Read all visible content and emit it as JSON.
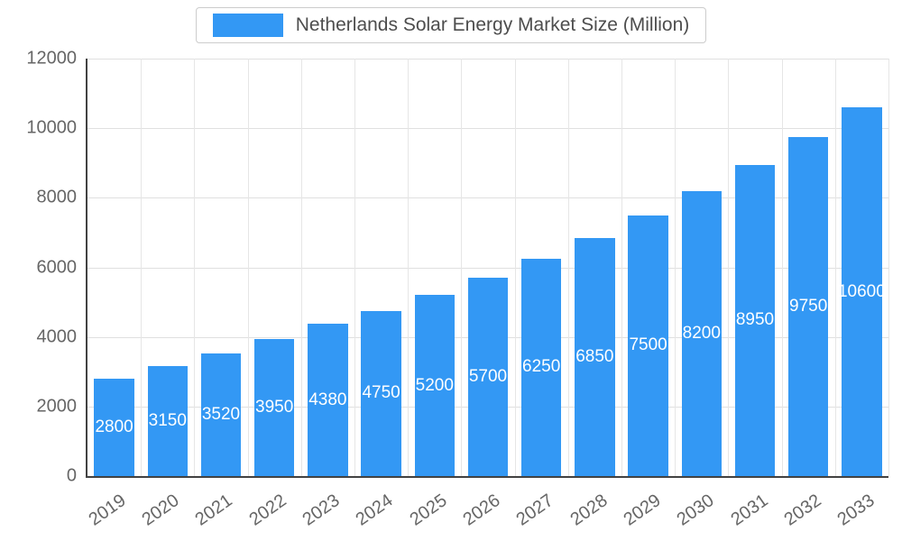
{
  "legend": {
    "label": "Netherlands Solar Energy Market Size (Million)"
  },
  "colors": {
    "bar": "#3398f4",
    "value_label": "#ffffff",
    "axis_text": "#666666",
    "legend_text": "#4d4d4d"
  },
  "chart_data": {
    "type": "bar",
    "title": "Netherlands Solar Energy Market Size (Million)",
    "categories": [
      "2019",
      "2020",
      "2021",
      "2022",
      "2023",
      "2024",
      "2025",
      "2026",
      "2027",
      "2028",
      "2029",
      "2030",
      "2031",
      "2032",
      "2033"
    ],
    "values": [
      2800,
      3150,
      3520,
      3950,
      4380,
      4750,
      5200,
      5700,
      6250,
      6850,
      7500,
      8200,
      8950,
      9750,
      10600
    ],
    "value_labels": [
      "2800",
      "3150",
      "3520",
      "3950",
      "4380",
      "4750",
      "5200",
      "5700",
      "6250",
      "6850",
      "7500",
      "8200",
      "8950",
      "9750",
      "10600"
    ],
    "xlabel": "",
    "ylabel": "",
    "ylim": [
      0,
      12000
    ],
    "yticks": [
      0,
      2000,
      4000,
      6000,
      8000,
      10000,
      12000
    ],
    "grid": true,
    "legend_position": "top",
    "x_tick_rotation": -35
  }
}
